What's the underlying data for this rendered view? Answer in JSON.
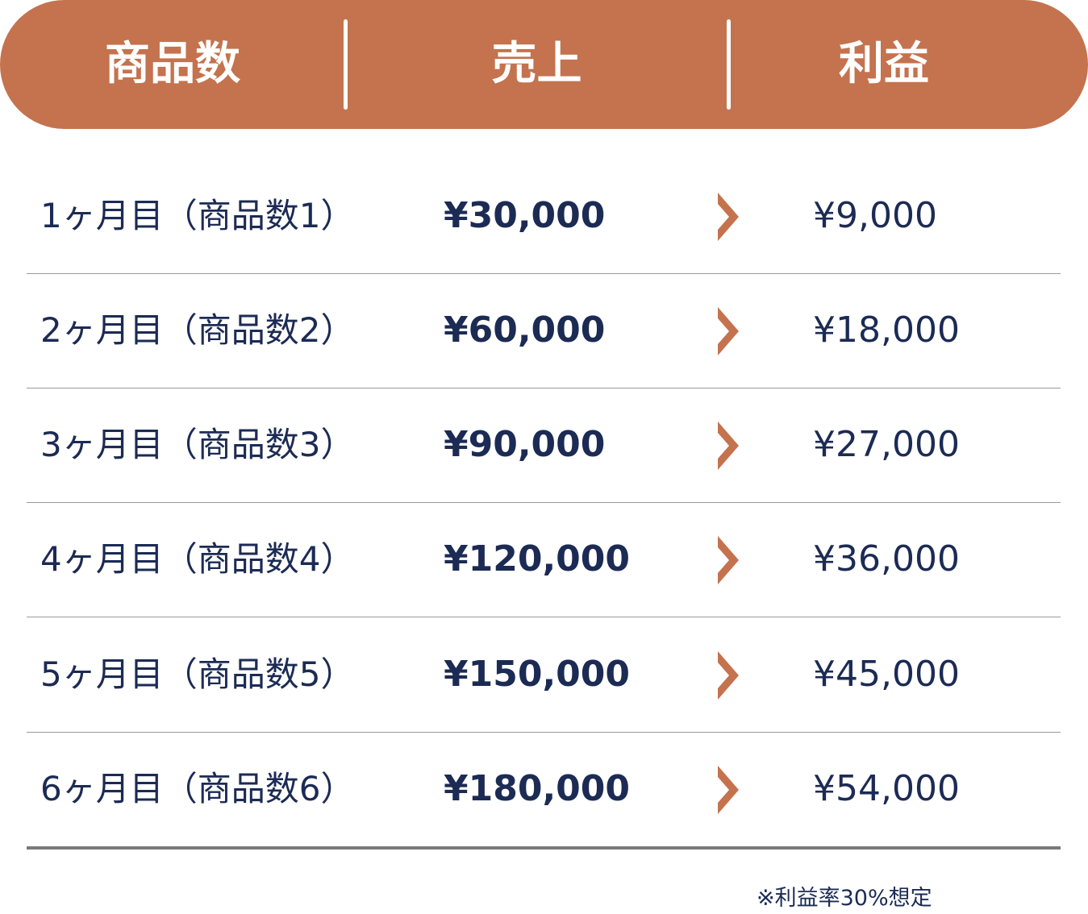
{
  "colors": {
    "accent": "#c4734e",
    "text": "#1c2b54"
  },
  "header": {
    "col1": "商品数",
    "col2": "売上",
    "col3": "利益"
  },
  "rows": [
    {
      "label": "1ヶ月目（商品数1）",
      "sales": "¥30,000",
      "profit": "¥9,000"
    },
    {
      "label": "2ヶ月目（商品数2）",
      "sales": "¥60,000",
      "profit": "¥18,000"
    },
    {
      "label": "3ヶ月目（商品数3）",
      "sales": "¥90,000",
      "profit": "¥27,000"
    },
    {
      "label": "4ヶ月目（商品数4）",
      "sales": "¥120,000",
      "profit": "¥36,000"
    },
    {
      "label": "5ヶ月目（商品数5）",
      "sales": "¥150,000",
      "profit": "¥45,000"
    },
    {
      "label": "6ヶ月目（商品数6）",
      "sales": "¥180,000",
      "profit": "¥54,000"
    }
  ],
  "icons": {
    "row_arrow": "chevron-right-icon"
  },
  "note": "※利益率30%想定"
}
